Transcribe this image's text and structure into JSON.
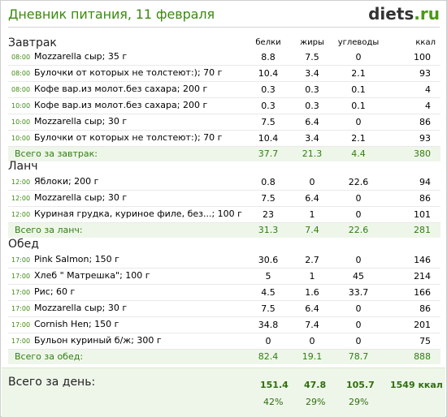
{
  "header": {
    "title": "Дневник питания, 11 февраля",
    "logo_main": "diets",
    "logo_tld": ".ru"
  },
  "columns": {
    "protein": "белки",
    "fat": "жиры",
    "carbs": "углеводы",
    "kcal": "ккал"
  },
  "meals": [
    {
      "title": "Завтрак",
      "items": [
        {
          "time": "08:00",
          "name": "Mozzarella  сыр; 35 г",
          "protein": "8.8",
          "fat": "7.5",
          "carbs": "0",
          "kcal": "100"
        },
        {
          "time": "08:00",
          "name": "Булочки от которых не толстеют:); 70 г",
          "protein": "10.4",
          "fat": "3.4",
          "carbs": "2.1",
          "kcal": "93"
        },
        {
          "time": "08:00",
          "name": "Кофе вар.из молот.без сахара; 200 г",
          "protein": "0.3",
          "fat": "0.3",
          "carbs": "0.1",
          "kcal": "4"
        },
        {
          "time": "10:00",
          "name": "Кофе вар.из молот.без сахара; 200 г",
          "protein": "0.3",
          "fat": "0.3",
          "carbs": "0.1",
          "kcal": "4"
        },
        {
          "time": "10:00",
          "name": "Mozzarella  сыр; 30 г",
          "protein": "7.5",
          "fat": "6.4",
          "carbs": "0",
          "kcal": "86"
        },
        {
          "time": "10:00",
          "name": "Булочки от которых не толстеют:); 70 г",
          "protein": "10.4",
          "fat": "3.4",
          "carbs": "2.1",
          "kcal": "93"
        }
      ],
      "total": {
        "label": "Всего за завтрак:",
        "protein": "37.7",
        "fat": "21.3",
        "carbs": "4.4",
        "kcal": "380"
      }
    },
    {
      "title": "Ланч",
      "items": [
        {
          "time": "12:00",
          "name": "Яблоки; 200 г",
          "protein": "0.8",
          "fat": "0",
          "carbs": "22.6",
          "kcal": "94"
        },
        {
          "time": "12:00",
          "name": "Mozzarella  сыр; 30 г",
          "protein": "7.5",
          "fat": "6.4",
          "carbs": "0",
          "kcal": "86"
        },
        {
          "time": "12:00",
          "name": "Куриная грудка, куриное филе, без...; 100 г",
          "protein": "23",
          "fat": "1",
          "carbs": "0",
          "kcal": "101"
        }
      ],
      "total": {
        "label": "Всего за ланч:",
        "protein": "31.3",
        "fat": "7.4",
        "carbs": "22.6",
        "kcal": "281"
      }
    },
    {
      "title": "Обед",
      "items": [
        {
          "time": "17:00",
          "name": "Pink Salmon; 150 г",
          "protein": "30.6",
          "fat": "2.7",
          "carbs": "0",
          "kcal": "146"
        },
        {
          "time": "17:00",
          "name": "Хлеб \" Матрешка\"; 100 г",
          "protein": "5",
          "fat": "1",
          "carbs": "45",
          "kcal": "214"
        },
        {
          "time": "17:00",
          "name": "Рис; 60 г",
          "protein": "4.5",
          "fat": "1.6",
          "carbs": "33.7",
          "kcal": "166"
        },
        {
          "time": "17:00",
          "name": "Mozzarella  сыр; 30 г",
          "protein": "7.5",
          "fat": "6.4",
          "carbs": "0",
          "kcal": "86"
        },
        {
          "time": "17:00",
          "name": "Cornish Hen; 150 г",
          "protein": "34.8",
          "fat": "7.4",
          "carbs": "0",
          "kcal": "201"
        },
        {
          "time": "17:00",
          "name": "Бульон куриный б/ж; 300 г",
          "protein": "0",
          "fat": "0",
          "carbs": "0",
          "kcal": "75"
        }
      ],
      "total": {
        "label": "Всего за обед:",
        "protein": "82.4",
        "fat": "19.1",
        "carbs": "78.7",
        "kcal": "888"
      }
    }
  ],
  "day_total": {
    "label": "Всего за день:",
    "protein": "151.4",
    "fat": "47.8",
    "carbs": "105.7",
    "kcal": "1549 ккал",
    "protein_pct": "42%",
    "fat_pct": "29%",
    "carbs_pct": "29%"
  },
  "colors": {
    "accent_green": "#3b8a0f",
    "total_bg": "#eef6ea"
  }
}
